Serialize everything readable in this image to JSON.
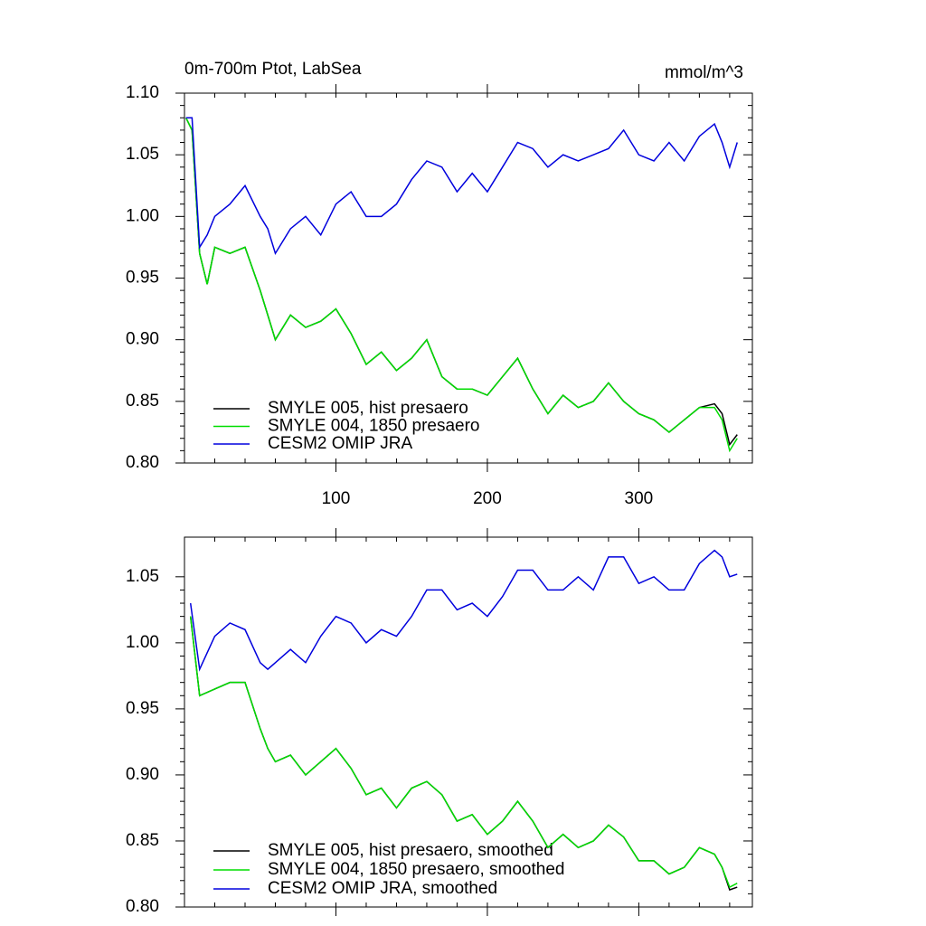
{
  "chart_data": [
    {
      "type": "line",
      "title": "0m-700m Ptot, LabSea",
      "units": "mmol/m^3",
      "x": [
        1,
        5,
        10,
        15,
        20,
        30,
        40,
        50,
        55,
        60,
        70,
        80,
        90,
        100,
        110,
        120,
        130,
        140,
        150,
        160,
        170,
        180,
        190,
        200,
        210,
        220,
        230,
        240,
        250,
        260,
        270,
        280,
        290,
        300,
        310,
        320,
        330,
        340,
        350,
        355,
        360,
        365
      ],
      "xlim": [
        0,
        375
      ],
      "xticks": [
        100,
        200,
        300
      ],
      "ylim": [
        0.8,
        1.1
      ],
      "yticks": [
        {
          "value": 0.8,
          "label": "0.80"
        },
        {
          "value": 0.85,
          "label": "0.85"
        },
        {
          "value": 0.9,
          "label": "0.90"
        },
        {
          "value": 0.95,
          "label": "0.95"
        },
        {
          "value": 1.0,
          "label": "1.00"
        },
        {
          "value": 1.05,
          "label": "1.05"
        },
        {
          "value": 1.1,
          "label": "1.10"
        }
      ],
      "series": [
        {
          "name": "SMYLE 005, hist presaero",
          "color": "#000000",
          "values": [
            1.08,
            1.07,
            0.97,
            0.945,
            0.975,
            0.97,
            0.975,
            0.94,
            0.92,
            0.9,
            0.92,
            0.91,
            0.915,
            0.925,
            0.905,
            0.88,
            0.89,
            0.875,
            0.885,
            0.9,
            0.87,
            0.86,
            0.86,
            0.855,
            0.87,
            0.885,
            0.86,
            0.84,
            0.855,
            0.845,
            0.85,
            0.865,
            0.85,
            0.84,
            0.835,
            0.825,
            0.835,
            0.845,
            0.848,
            0.84,
            0.815,
            0.823
          ]
        },
        {
          "name": "SMYLE 004, 1850 presaero",
          "color": "#00dd00",
          "values": [
            1.08,
            1.07,
            0.97,
            0.945,
            0.975,
            0.97,
            0.975,
            0.94,
            0.92,
            0.9,
            0.92,
            0.91,
            0.915,
            0.925,
            0.905,
            0.88,
            0.89,
            0.875,
            0.885,
            0.9,
            0.87,
            0.86,
            0.86,
            0.855,
            0.87,
            0.885,
            0.86,
            0.84,
            0.855,
            0.845,
            0.85,
            0.865,
            0.85,
            0.84,
            0.835,
            0.825,
            0.835,
            0.845,
            0.845,
            0.835,
            0.81,
            0.82
          ]
        },
        {
          "name": "CESM2 OMIP JRA",
          "color": "#0000dd",
          "values": [
            1.08,
            1.08,
            0.975,
            0.985,
            1.0,
            1.01,
            1.025,
            1.0,
            0.99,
            0.97,
            0.99,
            1.0,
            0.985,
            1.01,
            1.02,
            1.0,
            1.0,
            1.01,
            1.03,
            1.045,
            1.04,
            1.02,
            1.035,
            1.02,
            1.04,
            1.06,
            1.055,
            1.04,
            1.05,
            1.045,
            1.05,
            1.055,
            1.07,
            1.05,
            1.045,
            1.06,
            1.045,
            1.065,
            1.075,
            1.06,
            1.04,
            1.06
          ]
        }
      ]
    },
    {
      "type": "line",
      "x": [
        4,
        10,
        20,
        30,
        40,
        50,
        55,
        60,
        70,
        80,
        90,
        100,
        110,
        120,
        130,
        140,
        150,
        160,
        170,
        180,
        190,
        200,
        210,
        220,
        230,
        240,
        250,
        260,
        270,
        280,
        290,
        300,
        310,
        320,
        330,
        340,
        350,
        355,
        360,
        365
      ],
      "xlim": [
        0,
        375
      ],
      "xticks": [
        100,
        200,
        300
      ],
      "ylim": [
        0.8,
        1.08
      ],
      "yticks": [
        {
          "value": 0.8,
          "label": "0.80"
        },
        {
          "value": 0.85,
          "label": "0.85"
        },
        {
          "value": 0.9,
          "label": "0.90"
        },
        {
          "value": 0.95,
          "label": "0.95"
        },
        {
          "value": 1.0,
          "label": "1.00"
        },
        {
          "value": 1.05,
          "label": "1.05"
        }
      ],
      "series": [
        {
          "name": "SMYLE 005, hist presaero, smoothed",
          "color": "#000000",
          "values": [
            1.02,
            0.96,
            0.965,
            0.97,
            0.97,
            0.935,
            0.92,
            0.91,
            0.915,
            0.9,
            0.91,
            0.92,
            0.905,
            0.885,
            0.89,
            0.875,
            0.89,
            0.895,
            0.885,
            0.865,
            0.87,
            0.855,
            0.865,
            0.88,
            0.865,
            0.845,
            0.855,
            0.845,
            0.85,
            0.862,
            0.853,
            0.835,
            0.835,
            0.825,
            0.83,
            0.845,
            0.84,
            0.83,
            0.813,
            0.815
          ]
        },
        {
          "name": "SMYLE 004, 1850 presaero, smoothed",
          "color": "#00dd00",
          "values": [
            1.02,
            0.96,
            0.965,
            0.97,
            0.97,
            0.935,
            0.92,
            0.91,
            0.915,
            0.9,
            0.91,
            0.92,
            0.905,
            0.885,
            0.89,
            0.875,
            0.89,
            0.895,
            0.885,
            0.865,
            0.87,
            0.855,
            0.865,
            0.88,
            0.865,
            0.845,
            0.855,
            0.845,
            0.85,
            0.862,
            0.853,
            0.835,
            0.835,
            0.825,
            0.83,
            0.845,
            0.84,
            0.83,
            0.815,
            0.818
          ]
        },
        {
          "name": "CESM2 OMIP JRA, smoothed",
          "color": "#0000dd",
          "values": [
            1.03,
            0.98,
            1.005,
            1.015,
            1.01,
            0.985,
            0.98,
            0.985,
            0.995,
            0.985,
            1.005,
            1.02,
            1.015,
            1.0,
            1.01,
            1.005,
            1.02,
            1.04,
            1.04,
            1.025,
            1.03,
            1.02,
            1.035,
            1.055,
            1.055,
            1.04,
            1.04,
            1.05,
            1.04,
            1.065,
            1.065,
            1.045,
            1.05,
            1.04,
            1.04,
            1.06,
            1.07,
            1.065,
            1.05,
            1.052
          ]
        }
      ]
    }
  ]
}
